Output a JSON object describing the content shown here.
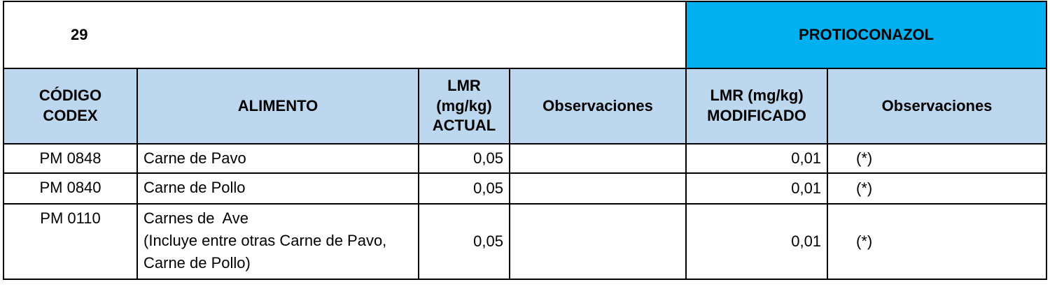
{
  "header": {
    "number": "29",
    "substance": "PROTIOCONAZOL"
  },
  "table": {
    "columns": [
      "CÓDIGO CODEX",
      "ALIMENTO",
      "LMR (mg/kg) ACTUAL",
      "Observaciones",
      "LMR (mg/kg) MODIFICADO",
      "Observaciones"
    ],
    "rows": [
      [
        "PM 0848",
        "Carne de Pavo",
        "0,05",
        null,
        "0,01",
        "(*)"
      ],
      [
        "PM 0840",
        "Carne de Pollo",
        "0,05",
        null,
        "0,01",
        "(*)"
      ],
      [
        "PM 0110",
        "Carnes de  Ave\n(Incluye entre otras Carne de Pavo, Carne de Pollo)",
        "0,05",
        null,
        "0,01",
        "(*)"
      ]
    ]
  }
}
